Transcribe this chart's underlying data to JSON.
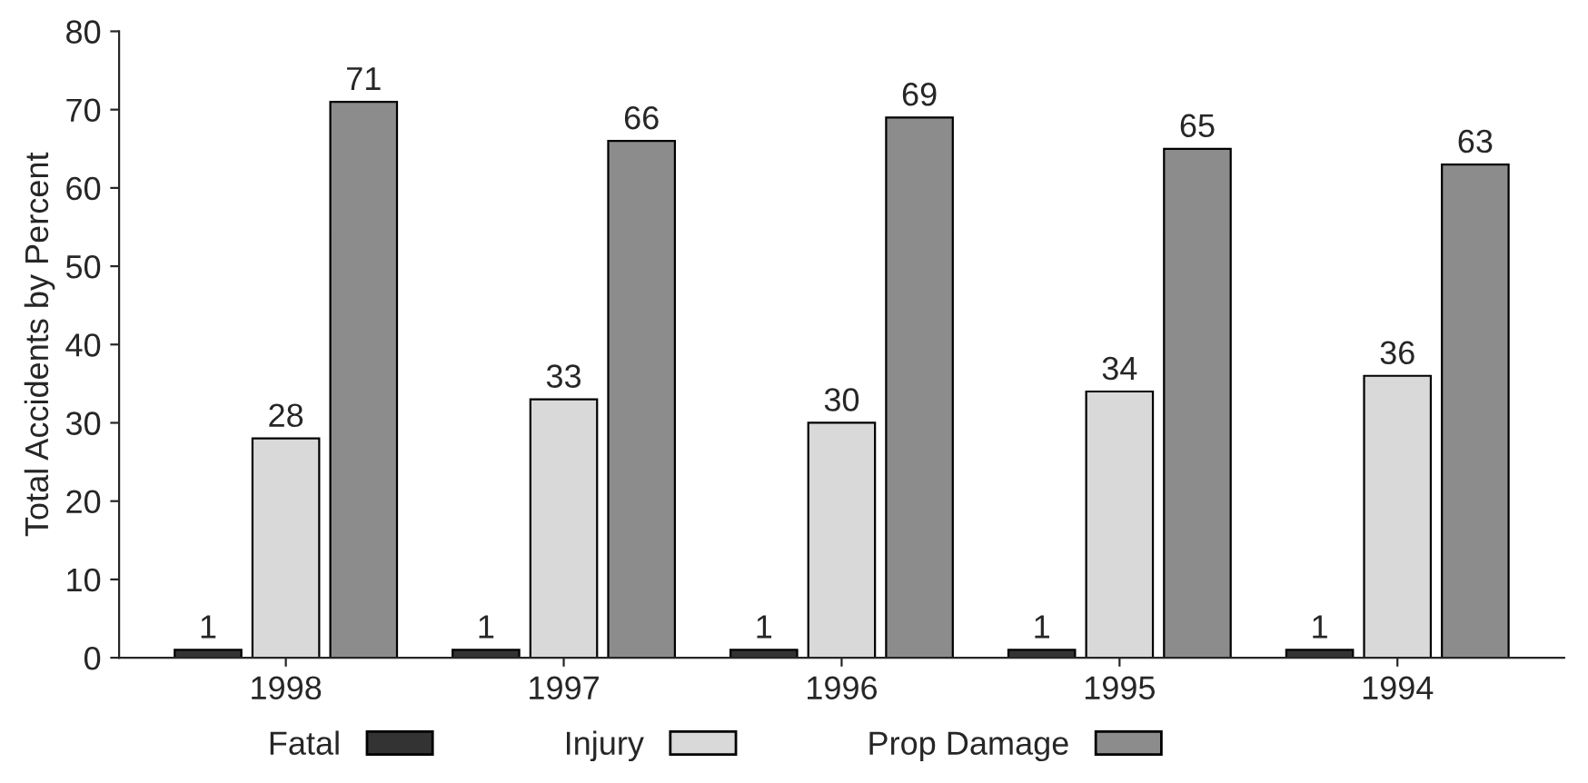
{
  "chart_data": {
    "type": "bar",
    "ylabel": "Total Accidents by Percent",
    "categories": [
      "1998",
      "1997",
      "1996",
      "1995",
      "1994"
    ],
    "series": [
      {
        "name": "Fatal",
        "color": "#333333",
        "values": [
          1,
          1,
          1,
          1,
          1
        ]
      },
      {
        "name": "Injury",
        "color": "#d9d9d9",
        "values": [
          28,
          33,
          30,
          34,
          36
        ]
      },
      {
        "name": "Prop Damage",
        "color": "#8c8c8c",
        "values": [
          71,
          66,
          69,
          65,
          63
        ]
      }
    ],
    "ylim": [
      0,
      80
    ],
    "yticks": [
      0,
      10,
      20,
      30,
      40,
      50,
      60,
      70,
      80
    ],
    "data_labels": true,
    "grid": false,
    "legend": "bottom"
  }
}
